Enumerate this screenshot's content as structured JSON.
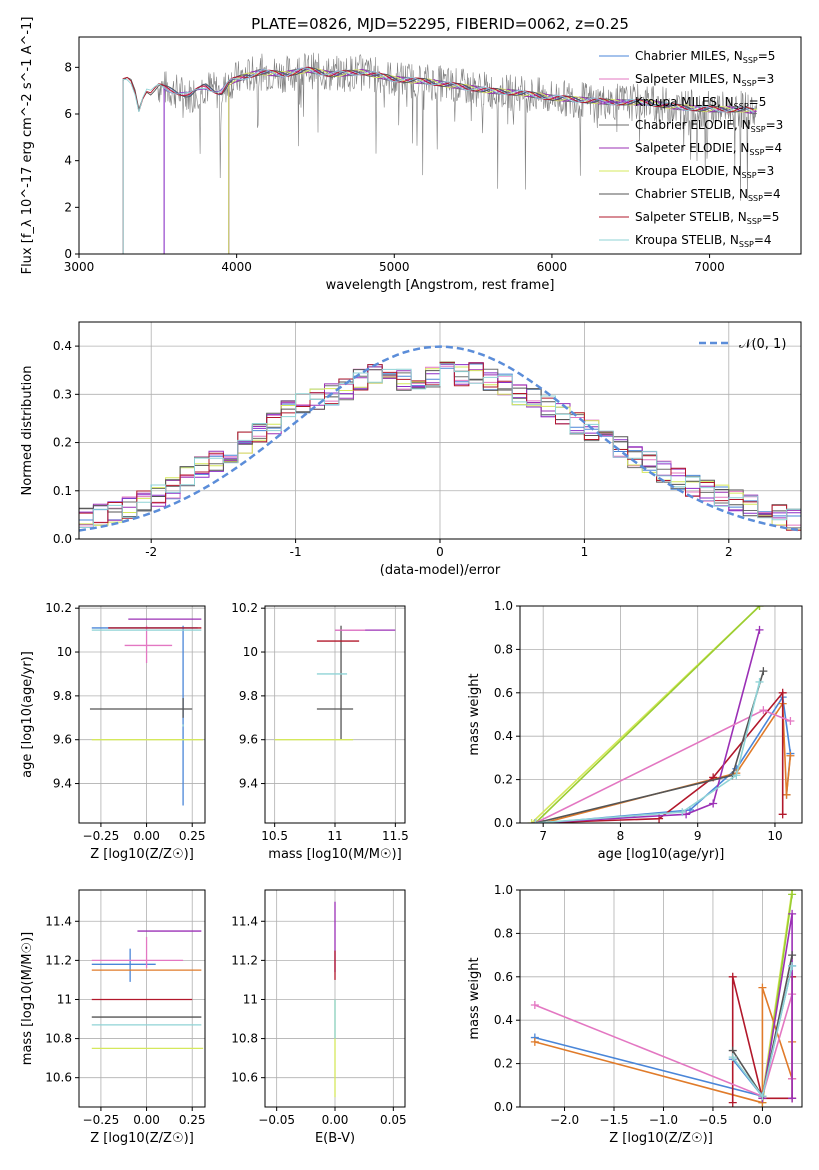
{
  "figure_title": "PLATE=0826, MJD=52295, FIBERID=0062, z=0.25",
  "colors": {
    "Chabrier MILES": "#4a86d8",
    "Salpeter MILES": "#e377c2",
    "Kroupa MILES": "#8b2fc9",
    "Chabrier ELODIE": "#6e6e6e",
    "Salpeter ELODIE": "#9b30b6",
    "Kroupa ELODIE": "#d5e85c",
    "Chabrier STELIB": "#555555",
    "Salpeter STELIB": "#b2182b",
    "Kroupa STELIB": "#8fd3d6",
    "normal_curve": "#5b8dd9",
    "data_spectrum": "#808080",
    "mw_orange": "#e07b2a",
    "mw_green": "#9acd32"
  },
  "chart_data": [
    {
      "id": "spectrum",
      "type": "line",
      "title": "PLATE=0826, MJD=52295, FIBERID=0062, z=0.25",
      "xlabel": "wavelength [Angstrom, rest frame]",
      "ylabel": "Flux [f_λ 10^-17 erg cm^-2 s^-1 A^-1]",
      "xlim": [
        3000,
        7580
      ],
      "ylim": [
        0,
        9.3
      ],
      "xticks": [
        3000,
        4000,
        5000,
        6000,
        7000
      ],
      "yticks": [
        0,
        2,
        4,
        6,
        8
      ],
      "grid": false,
      "legend_position": "top-right",
      "legend": [
        {
          "label": "Chabrier MILES, N",
          "sub": "SSP",
          "value": "=5"
        },
        {
          "label": "Salpeter MILES, N",
          "sub": "SSP",
          "value": "=3"
        },
        {
          "label": "Kroupa MILES, N",
          "sub": "SSP",
          "value": "=5"
        },
        {
          "label": "Chabrier ELODIE, N",
          "sub": "SSP",
          "value": "=3"
        },
        {
          "label": "Salpeter ELODIE, N",
          "sub": "SSP",
          "value": "=4"
        },
        {
          "label": "Kroupa ELODIE, N",
          "sub": "SSP",
          "value": "=3"
        },
        {
          "label": "Chabrier STELIB, N",
          "sub": "SSP",
          "value": "=4"
        },
        {
          "label": "Salpeter STELIB, N",
          "sub": "SSP",
          "value": "=5"
        },
        {
          "label": "Kroupa STELIB, N",
          "sub": "SSP",
          "value": "=4"
        }
      ],
      "model_cutoffs": [
        {
          "series": "Chabrier MILES",
          "start": 3540
        },
        {
          "series": "Salpeter MILES",
          "start": 3540
        },
        {
          "series": "Kroupa MILES",
          "start": 3540
        },
        {
          "series": "Chabrier ELODIE",
          "start": 3950
        },
        {
          "series": "Salpeter ELODIE",
          "start": 3950
        },
        {
          "series": "Kroupa ELODIE",
          "start": 3950
        },
        {
          "series": "Chabrier STELIB",
          "start": 3280
        },
        {
          "series": "Salpeter STELIB",
          "start": 3280
        },
        {
          "series": "Kroupa STELIB",
          "start": 3280
        }
      ],
      "continuum_points": [
        [
          3280,
          7.4
        ],
        [
          3320,
          7.5
        ],
        [
          3350,
          7.1
        ],
        [
          3380,
          6.2
        ],
        [
          3420,
          7.1
        ],
        [
          3460,
          6.9
        ],
        [
          3500,
          7.2
        ],
        [
          3600,
          7.0
        ],
        [
          3700,
          6.8
        ],
        [
          3800,
          7.2
        ],
        [
          3900,
          6.9
        ],
        [
          3960,
          7.4
        ],
        [
          4050,
          7.6
        ],
        [
          4150,
          7.8
        ],
        [
          4300,
          7.7
        ],
        [
          4450,
          7.9
        ],
        [
          4600,
          7.7
        ],
        [
          4800,
          7.8
        ],
        [
          5000,
          7.5
        ],
        [
          5200,
          7.4
        ],
        [
          5400,
          7.2
        ],
        [
          5600,
          7.0
        ],
        [
          5800,
          6.9
        ],
        [
          6000,
          6.7
        ],
        [
          6200,
          6.6
        ],
        [
          6400,
          6.5
        ],
        [
          6600,
          6.5
        ],
        [
          6800,
          6.3
        ],
        [
          7000,
          6.2
        ],
        [
          7200,
          6.2
        ],
        [
          7300,
          6.1
        ]
      ],
      "data_noise_range": [
        3500,
        7300
      ]
    },
    {
      "id": "residual_hist",
      "type": "area",
      "xlabel": "(data-model)/error",
      "ylabel": "Normed distribution",
      "xlim": [
        -2.5,
        2.5
      ],
      "ylim": [
        0,
        0.45
      ],
      "xticks": [
        -2,
        -1,
        0,
        1,
        2
      ],
      "yticks": [
        0.0,
        0.1,
        0.2,
        0.3,
        0.4
      ],
      "grid": true,
      "legend_position": "top-right",
      "legend": [
        {
          "label": "𝒩(0, 1)",
          "style": "dashed"
        }
      ],
      "bin_edges": [
        -2.5,
        -2.4,
        -2.3,
        -2.2,
        -2.1,
        -2.0,
        -1.9,
        -1.8,
        -1.7,
        -1.6,
        -1.5,
        -1.4,
        -1.3,
        -1.2,
        -1.1,
        -1.0,
        -0.9,
        -0.8,
        -0.7,
        -0.6,
        -0.5,
        -0.4,
        -0.3,
        -0.2,
        -0.1,
        0.0,
        0.1,
        0.2,
        0.3,
        0.4,
        0.5,
        0.6,
        0.7,
        0.8,
        0.9,
        1.0,
        1.1,
        1.2,
        1.3,
        1.4,
        1.5,
        1.6,
        1.7,
        1.8,
        1.9,
        2.0,
        2.1,
        2.2,
        2.3,
        2.4,
        2.5
      ],
      "base_values": [
        0.045,
        0.05,
        0.055,
        0.065,
        0.08,
        0.09,
        0.105,
        0.13,
        0.15,
        0.16,
        0.18,
        0.2,
        0.22,
        0.24,
        0.265,
        0.28,
        0.29,
        0.3,
        0.31,
        0.33,
        0.345,
        0.355,
        0.33,
        0.32,
        0.335,
        0.345,
        0.34,
        0.345,
        0.33,
        0.32,
        0.3,
        0.29,
        0.275,
        0.26,
        0.24,
        0.225,
        0.21,
        0.19,
        0.17,
        0.16,
        0.14,
        0.125,
        0.11,
        0.1,
        0.09,
        0.08,
        0.07,
        0.06,
        0.05,
        0.04
      ],
      "normal_curve": {
        "mu": 0,
        "sigma": 1
      }
    },
    {
      "id": "age_vs_Z",
      "type": "scatter",
      "xlabel": "Z [log10(Z/Z☉)]",
      "ylabel": "age  [log10(age/yr)]",
      "xlim": [
        -0.37,
        0.32
      ],
      "ylim": [
        9.22,
        10.21
      ],
      "xticks": [
        -0.25,
        0.0,
        0.25
      ],
      "xtick_labels": [
        "−0.25",
        "0.00",
        "0.25"
      ],
      "yticks": [
        9.4,
        9.6,
        9.8,
        10.0,
        10.2
      ],
      "grid": true,
      "crosses": [
        {
          "series": "Chabrier MILES",
          "x": [
            -0.3,
            0.28
          ],
          "y": [
            9.3,
            10.12
          ],
          "cx": 0.2,
          "cy": 10.11
        },
        {
          "series": "Salpeter MILES",
          "x": [
            -0.12,
            0.14
          ],
          "y": [
            9.95,
            10.12
          ],
          "cx": 0.0,
          "cy": 10.03
        },
        {
          "series": "Chabrier STELIB",
          "x": [
            -0.31,
            0.25
          ],
          "y": [
            9.7,
            9.79
          ],
          "cx": 0.2,
          "cy": 9.74
        },
        {
          "series": "Salpeter STELIB",
          "x": [
            -0.21,
            0.3
          ],
          "y": [
            9.94,
            9.94
          ],
          "cx": -0.2,
          "cy": 10.11
        },
        {
          "series": "Kroupa STELIB",
          "x": [
            -0.3,
            0.3
          ],
          "y": [
            9.66,
            9.67
          ],
          "cx": 0.2,
          "cy": 10.1
        },
        {
          "series": "Kroupa ELODIE",
          "x": [
            -0.3,
            0.31
          ],
          "y": [
            9.6,
            9.6
          ],
          "cx": 0.3,
          "cy": 9.6
        },
        {
          "series": "Salpeter ELODIE",
          "x": [
            -0.1,
            0.3
          ],
          "y": [
            9.8,
            9.8
          ],
          "cx": 0.28,
          "cy": 10.15
        }
      ]
    },
    {
      "id": "age_vs_mass",
      "type": "scatter",
      "xlabel": "mass [log10(M/M☉)]",
      "ylabel": "",
      "xlim": [
        10.42,
        11.58
      ],
      "ylim": [
        9.22,
        10.21
      ],
      "xticks": [
        10.5,
        11.0,
        11.5
      ],
      "yticks": [
        9.4,
        9.6,
        9.8,
        10.0,
        10.2
      ],
      "grid": true,
      "crosses": [
        {
          "series": "Chabrier STELIB",
          "x": [
            10.85,
            11.15
          ],
          "y": [
            9.6,
            10.12
          ],
          "cx": 11.05,
          "cy": 9.74
        },
        {
          "series": "Salpeter STELIB",
          "x": [
            10.85,
            11.2
          ],
          "y": [
            9.94,
            9.94
          ],
          "cx": 11.15,
          "cy": 10.05
        },
        {
          "series": "Kroupa ELODIE",
          "x": [
            10.5,
            11.15
          ],
          "y": [
            9.6,
            9.6
          ],
          "cx": 10.75,
          "cy": 9.6
        },
        {
          "series": "Salpeter ELODIE",
          "x": [
            11.0,
            11.5
          ],
          "y": [
            9.8,
            9.8
          ],
          "cx": 11.15,
          "cy": 10.1
        },
        {
          "series": "Salpeter MILES",
          "x": [
            11.0,
            11.25
          ],
          "y": [
            10.03,
            10.03
          ],
          "cx": 11.2,
          "cy": 10.1
        },
        {
          "series": "Kroupa STELIB",
          "x": [
            10.85,
            11.1
          ],
          "y": [
            9.67,
            9.67
          ],
          "cx": 10.9,
          "cy": 9.9
        }
      ]
    },
    {
      "id": "mw_vs_age",
      "type": "line",
      "xlabel": "age  [log10(age/yr)]",
      "ylabel": "mass weight",
      "xlim": [
        6.7,
        10.35
      ],
      "ylim": [
        0,
        1.0
      ],
      "xticks": [
        7,
        8,
        9,
        10
      ],
      "yticks": [
        0.0,
        0.2,
        0.4,
        0.6,
        0.8,
        1.0
      ],
      "grid": true,
      "lines": [
        {
          "color_key": "Kroupa ELODIE",
          "x": [
            6.85,
            9.8
          ],
          "y": [
            0.0,
            1.0
          ]
        },
        {
          "color_key": "mw_green",
          "x": [
            6.9,
            9.8
          ],
          "y": [
            0.0,
            1.0
          ]
        },
        {
          "color_key": "Chabrier MILES",
          "x": [
            7.0,
            8.9,
            9.5,
            10.1,
            10.2,
            10.15
          ],
          "y": [
            0.0,
            0.06,
            0.25,
            0.58,
            0.32,
            0.13
          ]
        },
        {
          "color_key": "mw_orange",
          "x": [
            7.0,
            9.5,
            10.1,
            10.15,
            10.2
          ],
          "y": [
            0.0,
            0.23,
            0.55,
            0.13,
            0.31
          ]
        },
        {
          "color_key": "Salpeter STELIB",
          "x": [
            6.9,
            8.5,
            9.2,
            10.1,
            10.1
          ],
          "y": [
            0.0,
            0.02,
            0.21,
            0.6,
            0.04
          ]
        },
        {
          "color_key": "Salpeter ELODIE",
          "x": [
            6.9,
            8.85,
            9.2,
            9.8
          ],
          "y": [
            0.0,
            0.04,
            0.09,
            0.89
          ]
        },
        {
          "color_key": "Salpeter MILES",
          "x": [
            6.9,
            9.85,
            10.2
          ],
          "y": [
            0.0,
            0.52,
            0.47
          ]
        },
        {
          "color_key": "Chabrier STELIB",
          "x": [
            6.9,
            9.45,
            9.85
          ],
          "y": [
            0.0,
            0.22,
            0.7
          ]
        },
        {
          "color_key": "Kroupa STELIB",
          "x": [
            6.9,
            8.8,
            9.5,
            9.8
          ],
          "y": [
            0.0,
            0.05,
            0.22,
            0.65
          ]
        }
      ]
    },
    {
      "id": "mass_vs_Z",
      "type": "scatter",
      "xlabel": "Z [log10(Z/Z☉)]",
      "ylabel": "mass [log10(M/M☉)]",
      "xlim": [
        -0.37,
        0.32
      ],
      "ylim": [
        10.45,
        11.56
      ],
      "xticks": [
        -0.25,
        0.0,
        0.25
      ],
      "xtick_labels": [
        "−0.25",
        "0.00",
        "0.25"
      ],
      "yticks": [
        10.6,
        10.8,
        11.0,
        11.2,
        11.4
      ],
      "grid": true,
      "crosses": [
        {
          "series": "Chabrier MILES",
          "x": [
            -0.3,
            0.05
          ],
          "y": [
            11.09,
            11.26
          ],
          "cx": -0.09,
          "cy": 11.18
        },
        {
          "series": "Salpeter MILES",
          "x": [
            -0.3,
            0.2
          ],
          "y": [
            11.16,
            11.32
          ],
          "cx": 0.0,
          "cy": 11.2
        },
        {
          "series": "mw_orange",
          "x": [
            -0.3,
            0.3
          ],
          "y": [
            11.15,
            11.15
          ],
          "cx": -0.1,
          "cy": 11.15
        },
        {
          "series": "Salpeter STELIB",
          "x": [
            -0.3,
            0.25
          ],
          "y": [
            10.96,
            10.96
          ],
          "cx": -0.1,
          "cy": 11.0
        },
        {
          "series": "Chabrier STELIB",
          "x": [
            -0.3,
            0.3
          ],
          "y": [
            10.91,
            10.91
          ],
          "cx": 0.2,
          "cy": 10.91
        },
        {
          "series": "Kroupa STELIB",
          "x": [
            -0.3,
            0.3
          ],
          "y": [
            10.87,
            10.87
          ],
          "cx": 0.2,
          "cy": 10.87
        },
        {
          "series": "Kroupa ELODIE",
          "x": [
            -0.3,
            0.31
          ],
          "y": [
            10.75,
            10.75
          ],
          "cx": 0.3,
          "cy": 10.75
        },
        {
          "series": "Salpeter ELODIE",
          "x": [
            -0.05,
            0.3
          ],
          "y": [
            11.15,
            11.15
          ],
          "cx": 0.27,
          "cy": 11.35
        }
      ]
    },
    {
      "id": "mass_vs_EBV",
      "type": "scatter",
      "xlabel": "E(B-V)",
      "ylabel": "",
      "xlim": [
        -0.06,
        0.06
      ],
      "ylim": [
        10.45,
        11.56
      ],
      "xticks": [
        -0.05,
        0.0,
        0.05
      ],
      "xtick_labels": [
        "−0.05",
        "0.00",
        "0.05"
      ],
      "yticks": [
        10.6,
        10.8,
        11.0,
        11.2,
        11.4
      ],
      "grid": true,
      "crosses": [
        {
          "series": "Salpeter ELODIE",
          "x": [
            0,
            0
          ],
          "y": [
            11.14,
            11.5
          ],
          "cx": 0,
          "cy": 11.2
        },
        {
          "series": "Kroupa ELODIE",
          "x": [
            0,
            0
          ],
          "y": [
            10.5,
            11.0
          ],
          "cx": 0,
          "cy": 10.75
        },
        {
          "series": "Salpeter STELIB",
          "x": [
            0,
            0
          ],
          "y": [
            11.1,
            11.25
          ],
          "cx": 0,
          "cy": 11.18
        },
        {
          "series": "Kroupa STELIB",
          "x": [
            0,
            0
          ],
          "y": [
            10.8,
            11.0
          ],
          "cx": 0,
          "cy": 10.9
        }
      ]
    },
    {
      "id": "mw_vs_Z",
      "type": "line",
      "xlabel": "Z [log10(Z/Z☉)]",
      "ylabel": "mass weight",
      "xlim": [
        -2.45,
        0.4
      ],
      "ylim": [
        0,
        1.0
      ],
      "xticks": [
        -2.0,
        -1.5,
        -1.0,
        -0.5,
        0.0
      ],
      "xtick_labels": [
        "−2.0",
        "−1.5",
        "−1.0",
        "−0.5",
        "0.0"
      ],
      "yticks": [
        0.0,
        0.2,
        0.4,
        0.6,
        0.8,
        1.0
      ],
      "grid": true,
      "lines": [
        {
          "color_key": "Kroupa ELODIE",
          "x": [
            0.0,
            0.3
          ],
          "y": [
            0.05,
            1.0
          ]
        },
        {
          "color_key": "mw_green",
          "x": [
            0.0,
            0.3
          ],
          "y": [
            0.02,
            0.98
          ]
        },
        {
          "color_key": "Chabrier MILES",
          "x": [
            -2.3,
            0.0,
            -0.3,
            0.0,
            0.3
          ],
          "y": [
            0.32,
            0.05,
            0.22,
            0.05,
            0.65
          ]
        },
        {
          "color_key": "mw_orange",
          "x": [
            -2.3,
            0.0,
            0.0,
            0.3,
            0.3
          ],
          "y": [
            0.3,
            0.02,
            0.55,
            0.13,
            0.3
          ]
        },
        {
          "color_key": "Salpeter STELIB",
          "x": [
            -0.3,
            -0.3,
            0.0,
            0.3,
            0.3
          ],
          "y": [
            0.02,
            0.6,
            0.04,
            0.04,
            0.6
          ]
        },
        {
          "color_key": "Salpeter MILES",
          "x": [
            -2.3,
            0.0,
            0.3,
            0.3
          ],
          "y": [
            0.47,
            0.05,
            0.52,
            0.13
          ]
        },
        {
          "color_key": "Salpeter ELODIE",
          "x": [
            0.0,
            0.3,
            0.3
          ],
          "y": [
            0.04,
            0.89,
            0.04
          ]
        },
        {
          "color_key": "Chabrier STELIB",
          "x": [
            -0.3,
            0.0,
            0.3
          ],
          "y": [
            0.26,
            0.05,
            0.7
          ]
        },
        {
          "color_key": "Kroupa STELIB",
          "x": [
            -0.3,
            0.0,
            0.3
          ],
          "y": [
            0.23,
            0.05,
            0.65
          ]
        }
      ]
    }
  ]
}
